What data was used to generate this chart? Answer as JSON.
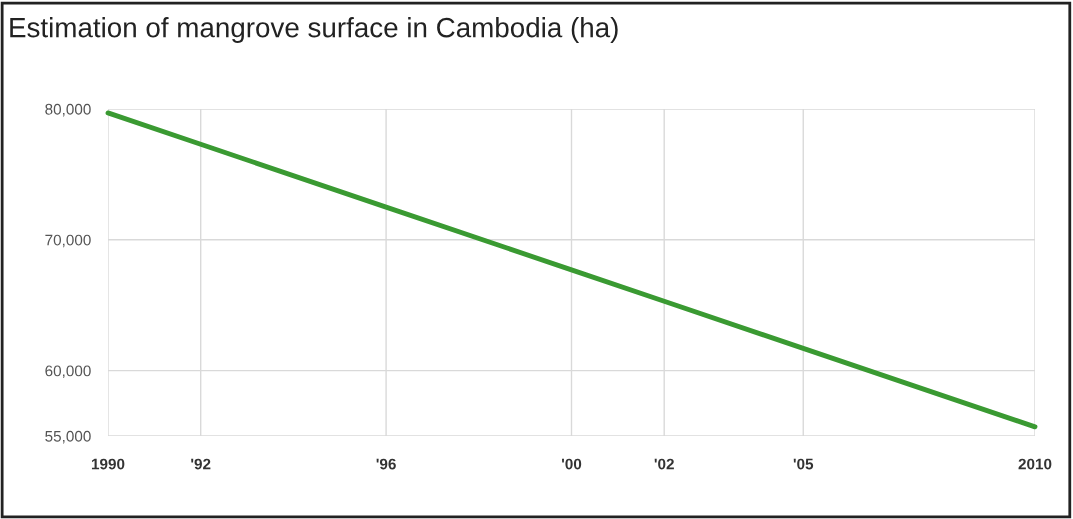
{
  "chart_data": {
    "type": "line",
    "title": "Estimation of mangrove surface in Cambodia (ha)",
    "x": [
      1990,
      1992,
      1996,
      2000,
      2002,
      2005,
      2010
    ],
    "series": [
      {
        "color": "#3a9a32",
        "values": [
          79700,
          77300,
          72500,
          67700,
          65300,
          61700,
          55700
        ]
      }
    ],
    "xlim": [
      1990,
      2010
    ],
    "xticks": [
      {
        "value": 1990,
        "label": "1990"
      },
      {
        "value": 1992,
        "label": "'92"
      },
      {
        "value": 1996,
        "label": "'96"
      },
      {
        "value": 2000,
        "label": "'00"
      },
      {
        "value": 2002,
        "label": "'02"
      },
      {
        "value": 2005,
        "label": "'05"
      },
      {
        "value": 2010,
        "label": "2010"
      }
    ],
    "ylim": [
      55000,
      80000
    ],
    "yticks": [
      {
        "value": 55000,
        "label": "55,000"
      },
      {
        "value": 60000,
        "label": "60,000"
      },
      {
        "value": 70000,
        "label": "70,000"
      },
      {
        "value": 80000,
        "label": "80,000"
      }
    ],
    "grid": true,
    "marker": "none",
    "line_style": "solid"
  }
}
